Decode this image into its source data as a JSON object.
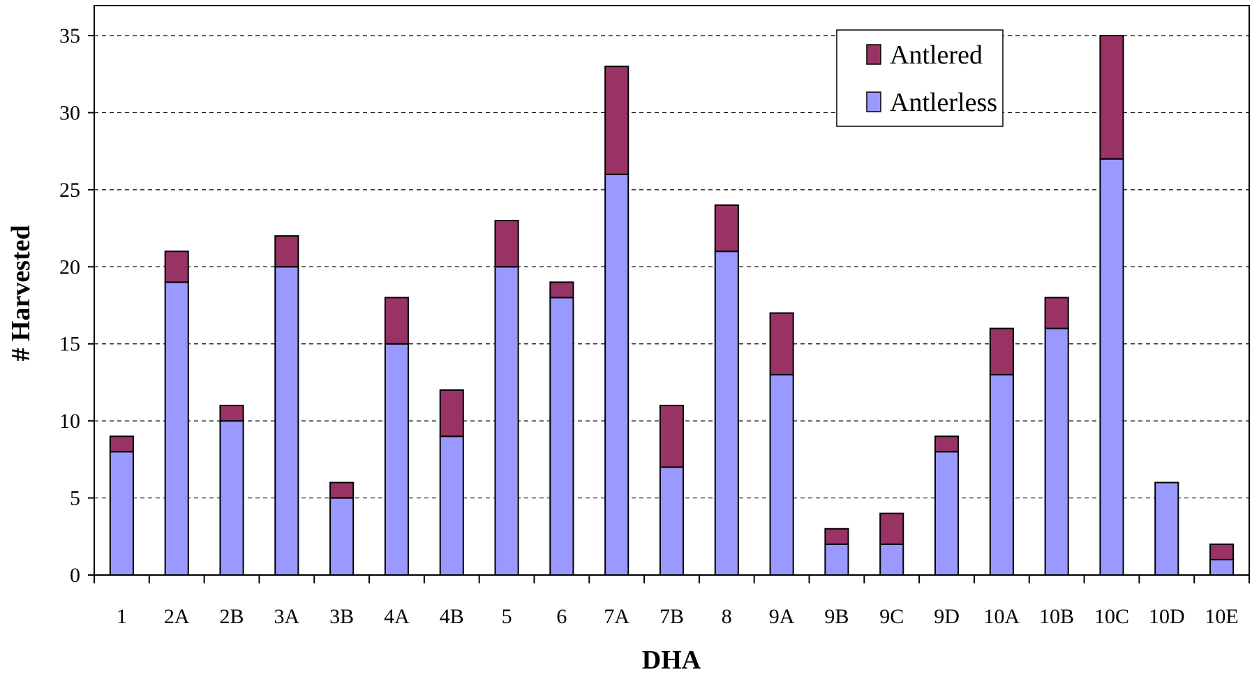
{
  "chart_data": {
    "type": "bar",
    "stacked": true,
    "xlabel": "DHA",
    "ylabel": "# Harvested",
    "ylim": [
      0,
      35
    ],
    "ystep": 5,
    "grid": "horizontal-dashed",
    "legend": "top-right",
    "categories": [
      "1",
      "2A",
      "2B",
      "3A",
      "3B",
      "4A",
      "4B",
      "5",
      "6",
      "7A",
      "7B",
      "8",
      "9A",
      "9B",
      "9C",
      "9D",
      "10A",
      "10B",
      "10C",
      "10D",
      "10E"
    ],
    "series": [
      {
        "name": "Antlerless",
        "color": "#9999ff",
        "values": [
          8,
          19,
          10,
          20,
          5,
          15,
          9,
          20,
          18,
          26,
          7,
          21,
          13,
          2,
          2,
          8,
          13,
          16,
          27,
          6,
          1
        ]
      },
      {
        "name": "Antlered",
        "color": "#993366",
        "values": [
          1,
          2,
          1,
          2,
          1,
          3,
          3,
          3,
          1,
          7,
          4,
          3,
          4,
          1,
          2,
          1,
          3,
          2,
          8,
          0,
          1
        ]
      }
    ],
    "legend_order": [
      "Antlered",
      "Antlerless"
    ]
  }
}
